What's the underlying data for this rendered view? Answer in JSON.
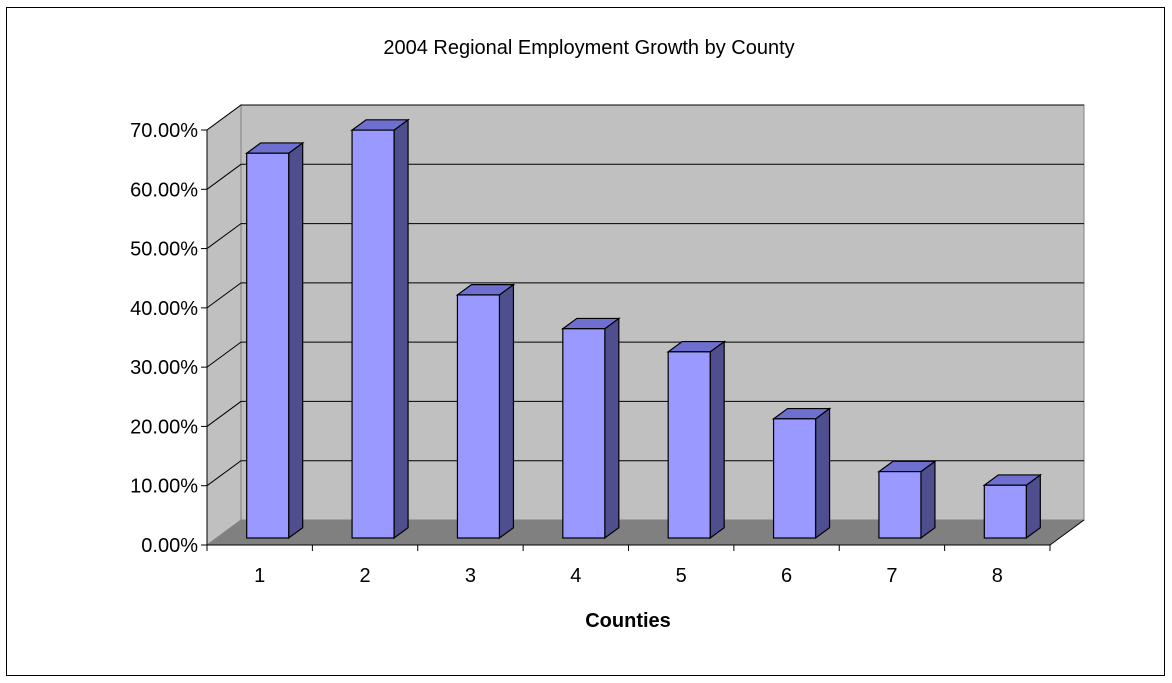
{
  "colors": {
    "bar_front": "#9999ff",
    "bar_top": "#6f6fd0",
    "bar_side": "#4f4f8f",
    "back_wall": "#c0c0c0",
    "side_wall": "#c0c0c0",
    "floor": "#808080",
    "gridline": "#000000",
    "outline": "#000000"
  },
  "chart_data": {
    "type": "bar",
    "title": "2004 Regional Employment Growth by County",
    "xlabel": "Counties",
    "ylabel": "",
    "categories": [
      "1",
      "2",
      "3",
      "4",
      "5",
      "6",
      "7",
      "8"
    ],
    "values": [
      0.649,
      0.688,
      0.41,
      0.353,
      0.314,
      0.201,
      0.112,
      0.089
    ],
    "ylim": [
      0,
      0.7
    ],
    "yticks": [
      0,
      0.1,
      0.2,
      0.3,
      0.4,
      0.5,
      0.6,
      0.7
    ],
    "ytick_labels": [
      "0.00%",
      "10.00%",
      "20.00%",
      "30.00%",
      "40.00%",
      "50.00%",
      "60.00%",
      "70.00%"
    ],
    "grid": true,
    "legend": "none",
    "style": "3d-clustered-column"
  }
}
